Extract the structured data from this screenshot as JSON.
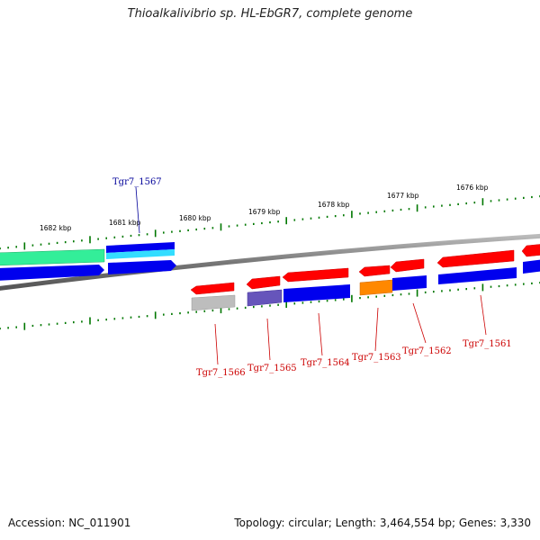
{
  "title": "Thioalkalivibrio sp. HL-EbGR7, complete genome",
  "footer": {
    "accession": "Accession: NC_011901",
    "topology": "Topology: circular; Length: 3,464,554 bp; Genes: 3,330"
  },
  "colors": {
    "ruler": "#007700",
    "backbone": "#777777",
    "highlight_label": "#000099",
    "gene_label": "#cc0000",
    "cds_red": "#ff0000",
    "cds_blue": "#0000ee",
    "cds_teal": "#33ee99",
    "cds_cyan": "#33ddff",
    "cds_orange": "#ff8800",
    "cds_purple": "#6655bb",
    "cds_gray": "#b8b8b8"
  },
  "kbp_labels": [
    "1682 kbp",
    "1681 kbp",
    "1680 kbp",
    "1679 kbp",
    "1678 kbp",
    "1677 kbp",
    "1676 kbp"
  ],
  "gene_labels": [
    {
      "id": "tgr7-1567",
      "text": "Tgr7_1567",
      "highlight": true
    },
    {
      "id": "tgr7-1566",
      "text": "Tgr7_1566",
      "highlight": false
    },
    {
      "id": "tgr7-1565",
      "text": "Tgr7_1565",
      "highlight": false
    },
    {
      "id": "tgr7-1564",
      "text": "Tgr7_1564",
      "highlight": false
    },
    {
      "id": "tgr7-1563",
      "text": "Tgr7_1563",
      "highlight": false
    },
    {
      "id": "tgr7-1562",
      "text": "Tgr7_1562",
      "highlight": false
    },
    {
      "id": "tgr7-1561",
      "text": "Tgr7_1561",
      "highlight": false
    }
  ]
}
